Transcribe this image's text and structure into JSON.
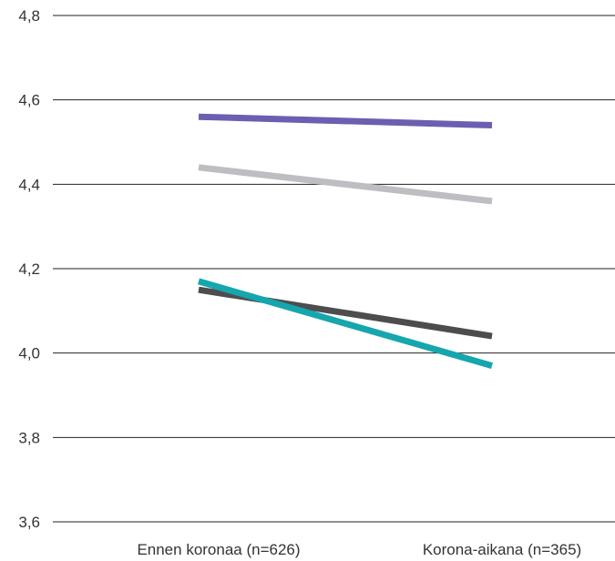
{
  "chart_data": {
    "type": "line",
    "categories": [
      "Ennen koronaa (n=626)",
      "Korona-aikana (n=365)"
    ],
    "ylim": [
      3.6,
      4.8
    ],
    "yticks": [
      3.6,
      3.8,
      4.0,
      4.2,
      4.4,
      4.6,
      4.8
    ],
    "ytick_labels": [
      "3,6",
      "3,8",
      "4,0",
      "4,2",
      "4,4",
      "4,6",
      "4,8"
    ],
    "grid": true,
    "legend": "none",
    "series": [
      {
        "color": "#6a5fb0",
        "values": [
          4.56,
          4.54
        ]
      },
      {
        "color": "#bdbdc2",
        "values": [
          4.44,
          4.36
        ]
      },
      {
        "color": "#4d4d4f",
        "values": [
          4.15,
          4.04
        ]
      },
      {
        "color": "#16a6ad",
        "values": [
          4.17,
          3.97
        ]
      }
    ]
  }
}
